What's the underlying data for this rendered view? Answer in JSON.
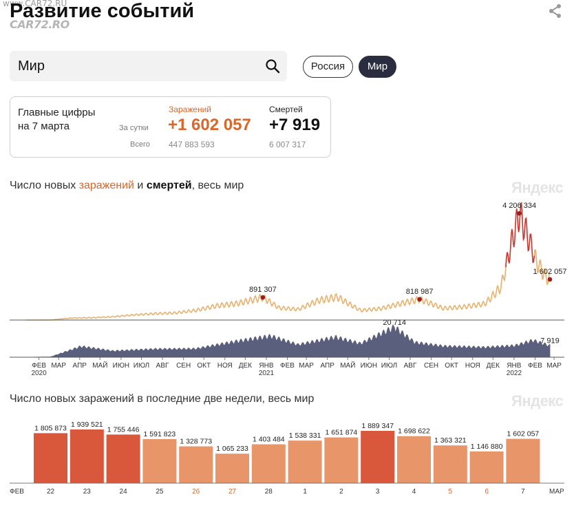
{
  "watermark": {
    "top": "www.CAR72.RU",
    "logo": "CAR72.RO"
  },
  "header": {
    "title": "Развитие событий",
    "share_icon": "share-icon"
  },
  "search": {
    "value": "Мир",
    "icon": "search-icon"
  },
  "toggle": {
    "russia": "Россия",
    "world": "Мир",
    "active": "world"
  },
  "stats": {
    "headline_line1": "Главные цифры",
    "headline_line2": "на 7 марта",
    "per_day_label": "За сутки",
    "total_label": "Всего",
    "cases_label": "Заражений",
    "deaths_label": "Смертей",
    "cases_day": "+1 602 057",
    "deaths_day": "+7 919",
    "cases_total": "447 883 593",
    "deaths_total": "6 007 317"
  },
  "colors": {
    "cases_line": "#e8b06a",
    "cases_peak": "#c9352a",
    "deaths_area": "#5a5f7d",
    "marker": "#9c1e1e",
    "bar_high": "#d9573a",
    "bar_mid": "#e8956a",
    "accent": "#d9662a"
  },
  "chart1": {
    "title_part1": "Число новых ",
    "title_part2": "заражений",
    "title_part3": " и ",
    "title_part4": "смертей",
    "title_part5": ", весь мир",
    "brand": "Яндекс"
  },
  "chart2": {
    "title": "Число новых заражений в последние две недели, весь мир",
    "brand": "Яндекс"
  },
  "chart_data": [
    {
      "type": "line",
      "title": "Число новых заражений и смертей, весь мир",
      "x_tick_labels": [
        "ФЕВ",
        "МАР",
        "АПР",
        "МАЙ",
        "ИЮН",
        "ИЮЛ",
        "АВГ",
        "СЕН",
        "ОКТ",
        "НОЯ",
        "ДЕК",
        "ЯНВ",
        "ФЕВ",
        "МАР",
        "АПР",
        "МАЙ",
        "ИЮН",
        "ИЮЛ",
        "АВГ",
        "СЕН",
        "ОКТ",
        "НОЯ",
        "ДЕК",
        "ЯНВ",
        "ФЕВ",
        "МАР"
      ],
      "year_labels": [
        {
          "under": 0,
          "text": "2020"
        },
        {
          "under": 11,
          "text": "2021"
        },
        {
          "under": 23,
          "text": "2022"
        }
      ],
      "series": [
        {
          "name": "заражений",
          "x": [
            "2020-01-25",
            "2020-03-01",
            "2020-04-01",
            "2020-05-01",
            "2020-06-01",
            "2020-07-01",
            "2020-08-01",
            "2020-09-01",
            "2020-10-01",
            "2020-11-01",
            "2020-12-01",
            "2021-01-08",
            "2021-02-01",
            "2021-03-01",
            "2021-04-01",
            "2021-04-28",
            "2021-06-01",
            "2021-07-01",
            "2021-08-01",
            "2021-08-27",
            "2021-10-01",
            "2021-11-01",
            "2021-12-01",
            "2021-12-25",
            "2022-01-10",
            "2022-01-21",
            "2022-02-01",
            "2022-02-15",
            "2022-03-01",
            "2022-03-07"
          ],
          "y": [
            0,
            2000,
            80000,
            90000,
            130000,
            200000,
            250000,
            280000,
            380000,
            560000,
            650000,
            891307,
            480000,
            420000,
            780000,
            900000,
            380000,
            450000,
            660000,
            818987,
            460000,
            520000,
            640000,
            1300000,
            3100000,
            4206334,
            3400000,
            2300000,
            1700000,
            1602057
          ]
        },
        {
          "name": "смертей",
          "x": [
            "2020-01-25",
            "2020-03-01",
            "2020-04-15",
            "2020-06-01",
            "2020-08-01",
            "2020-10-01",
            "2020-12-01",
            "2021-01-20",
            "2021-03-01",
            "2021-04-25",
            "2021-06-01",
            "2021-07-21",
            "2021-08-20",
            "2021-10-01",
            "2021-12-01",
            "2022-01-15",
            "2022-02-10",
            "2022-03-07"
          ],
          "y": [
            0,
            200,
            7400,
            4300,
            5600,
            5800,
            11000,
            14500,
            8600,
            13800,
            9400,
            20714,
            10200,
            7600,
            6800,
            8000,
            11600,
            7919
          ]
        }
      ],
      "annotations": [
        {
          "label": "891 307",
          "series": "заражений",
          "x": "2021-01-08",
          "y": 891307
        },
        {
          "label": "818 987",
          "series": "заражений",
          "x": "2021-08-27",
          "y": 818987
        },
        {
          "label": "4 206 334",
          "series": "заражений",
          "x": "2022-01-21",
          "y": 4206334
        },
        {
          "label": "1 602 057",
          "series": "заражений",
          "x": "2022-03-07",
          "y": 1602057
        },
        {
          "label": "20 714",
          "series": "смертей",
          "x": "2021-07-21",
          "y": 20714
        },
        {
          "label": "7 919",
          "series": "смертей",
          "x": "2022-03-07",
          "y": 7919
        }
      ],
      "grid": false,
      "legend": "none"
    },
    {
      "type": "bar",
      "title": "Число новых заражений в последние две недели, весь мир",
      "categories": [
        "22",
        "23",
        "24",
        "25",
        "26",
        "27",
        "28",
        "1",
        "2",
        "3",
        "4",
        "5",
        "6",
        "7"
      ],
      "month_labels": [
        "ФЕВ",
        "МАР"
      ],
      "weekend": [
        false,
        false,
        false,
        false,
        true,
        true,
        false,
        false,
        false,
        false,
        false,
        true,
        true,
        false
      ],
      "values": [
        1805873,
        1939521,
        1755446,
        1591823,
        1328773,
        1065233,
        1403484,
        1538331,
        1651874,
        1889347,
        1698622,
        1363321,
        1146880,
        1602057
      ],
      "value_labels": [
        "1 805 873",
        "1 939 521",
        "1 755 446",
        "1 591 823",
        "1 328 773",
        "1 065 233",
        "1 403 484",
        "1 538 331",
        "1 651 874",
        "1 889 347",
        "1 698 622",
        "1 363 321",
        "1 146 880",
        "1 602 057"
      ],
      "ylim": [
        0,
        2100000
      ]
    }
  ]
}
